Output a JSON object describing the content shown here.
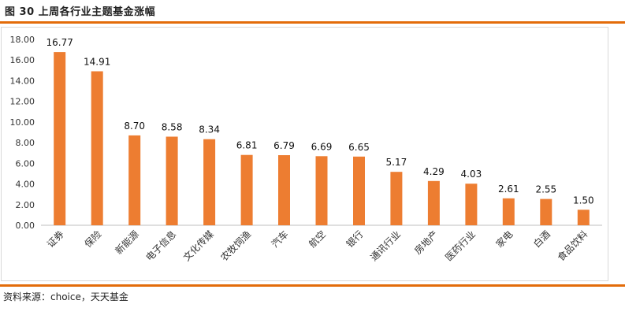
{
  "header": {
    "figure_title": "图 30   上周各行业主题基金涨幅"
  },
  "footer": {
    "source": "资料来源：choice，天天基金"
  },
  "chart_data": {
    "type": "bar",
    "categories": [
      "证券",
      "保险",
      "新能源",
      "电子信息",
      "文化传媒",
      "农牧饲渔",
      "汽车",
      "航空",
      "银行",
      "通讯行业",
      "房地产",
      "医药行业",
      "家电",
      "白酒",
      "食品饮料"
    ],
    "values": [
      16.77,
      14.91,
      8.7,
      8.58,
      8.34,
      6.81,
      6.79,
      6.69,
      6.65,
      5.17,
      4.29,
      4.03,
      2.61,
      2.55,
      1.5
    ],
    "value_labels": [
      "16.77",
      "14.91",
      "8.70",
      "8.58",
      "8.34",
      "6.81",
      "6.79",
      "6.69",
      "6.65",
      "5.17",
      "4.29",
      "4.03",
      "2.61",
      "2.55",
      "1.50"
    ],
    "y_ticks": [
      "0.00",
      "2.00",
      "4.00",
      "6.00",
      "8.00",
      "10.00",
      "12.00",
      "14.00",
      "16.00",
      "18.00"
    ],
    "ylim": [
      0,
      18
    ],
    "bar_color": "#ED7D31",
    "grid": false,
    "title": "",
    "xlabel": "",
    "ylabel": ""
  }
}
